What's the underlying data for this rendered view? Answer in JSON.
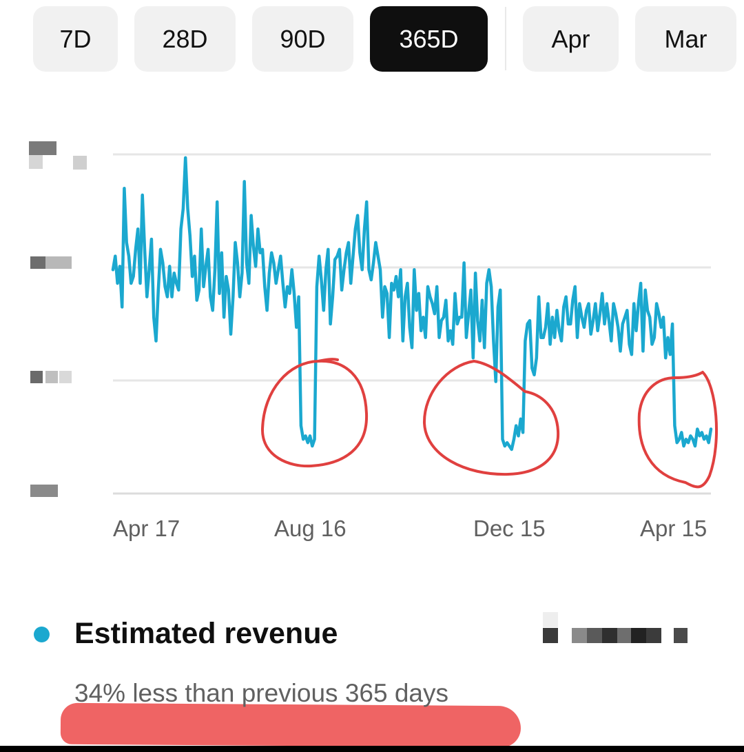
{
  "period_tabs": [
    {
      "label": "7D",
      "selected": false
    },
    {
      "label": "28D",
      "selected": false
    },
    {
      "label": "90D",
      "selected": true,
      "note": ""
    },
    {
      "label": "365D",
      "selected": true
    },
    {
      "label": "Apr",
      "selected": false
    },
    {
      "label": "Mar",
      "selected": false
    }
  ],
  "colors": {
    "series": "#1ba8cf",
    "active_tab": "#0f0f0f",
    "inactive_tab": "#f1f1f1",
    "annotation": "#e0403f",
    "gridline": "#e6e6e6",
    "muted_text": "#606060"
  },
  "chart_data": {
    "type": "line",
    "x_ticks": [
      "Apr 17",
      "Aug 16",
      "Dec 15",
      "Apr 15"
    ],
    "y_ticks_visible": false,
    "y_axis_labels": "redacted",
    "grid": true,
    "series": [
      {
        "values": [
          0.66,
          0.7,
          0.62,
          0.67,
          0.55,
          0.9,
          0.74,
          0.7,
          0.62,
          0.64,
          0.72,
          0.78,
          0.62,
          0.88,
          0.72,
          0.58,
          0.66,
          0.75,
          0.52,
          0.45,
          0.6,
          0.72,
          0.68,
          0.61,
          0.58,
          0.67,
          0.58,
          0.65,
          0.62,
          0.6,
          0.78,
          0.84,
          0.99,
          0.84,
          0.76,
          0.64,
          0.7,
          0.57,
          0.6,
          0.78,
          0.61,
          0.67,
          0.72,
          0.58,
          0.54,
          0.66,
          0.86,
          0.59,
          0.71,
          0.52,
          0.64,
          0.6,
          0.47,
          0.58,
          0.74,
          0.68,
          0.58,
          0.65,
          0.92,
          0.68,
          0.62,
          0.82,
          0.73,
          0.67,
          0.78,
          0.71,
          0.72,
          0.61,
          0.54,
          0.65,
          0.71,
          0.68,
          0.62,
          0.66,
          0.7,
          0.62,
          0.55,
          0.61,
          0.59,
          0.66,
          0.59,
          0.49,
          0.58,
          0.2,
          0.16,
          0.17,
          0.15,
          0.17,
          0.14,
          0.16,
          0.61,
          0.7,
          0.63,
          0.54,
          0.66,
          0.72,
          0.5,
          0.58,
          0.69,
          0.7,
          0.72,
          0.6,
          0.66,
          0.71,
          0.74,
          0.62,
          0.7,
          0.78,
          0.82,
          0.71,
          0.66,
          0.78,
          0.86,
          0.66,
          0.63,
          0.68,
          0.74,
          0.7,
          0.66,
          0.52,
          0.61,
          0.59,
          0.46,
          0.62,
          0.6,
          0.64,
          0.58,
          0.66,
          0.45,
          0.58,
          0.62,
          0.49,
          0.43,
          0.66,
          0.54,
          0.59,
          0.48,
          0.52,
          0.46,
          0.61,
          0.58,
          0.56,
          0.53,
          0.61,
          0.46,
          0.51,
          0.52,
          0.57,
          0.45,
          0.48,
          0.44,
          0.59,
          0.5,
          0.52,
          0.52,
          0.68,
          0.46,
          0.53,
          0.6,
          0.4,
          0.65,
          0.51,
          0.45,
          0.57,
          0.43,
          0.62,
          0.66,
          0.61,
          0.45,
          0.33,
          0.55,
          0.6,
          0.16,
          0.14,
          0.15,
          0.14,
          0.13,
          0.16,
          0.2,
          0.17,
          0.22,
          0.18,
          0.45,
          0.5,
          0.51,
          0.37,
          0.35,
          0.4,
          0.58,
          0.46,
          0.46,
          0.49,
          0.56,
          0.44,
          0.52,
          0.46,
          0.54,
          0.48,
          0.45,
          0.55,
          0.58,
          0.5,
          0.5,
          0.57,
          0.61,
          0.46,
          0.56,
          0.52,
          0.49,
          0.54,
          0.56,
          0.47,
          0.51,
          0.56,
          0.48,
          0.53,
          0.59,
          0.5,
          0.56,
          0.51,
          0.45,
          0.56,
          0.53,
          0.49,
          0.42,
          0.5,
          0.52,
          0.54,
          0.44,
          0.41,
          0.56,
          0.48,
          0.56,
          0.62,
          0.42,
          0.6,
          0.54,
          0.52,
          0.44,
          0.46,
          0.56,
          0.53,
          0.49,
          0.52,
          0.4,
          0.46,
          0.41,
          0.5,
          0.2,
          0.15,
          0.16,
          0.18,
          0.14,
          0.16,
          0.15,
          0.17,
          0.16,
          0.14,
          0.19,
          0.17,
          0.18,
          0.16,
          0.17,
          0.15,
          0.19
        ]
      }
    ],
    "annotations": [
      {
        "type": "hand-drawn circle",
        "around": "drop near Aug 16"
      },
      {
        "type": "hand-drawn circle",
        "around": "drop near Dec 15"
      },
      {
        "type": "hand-drawn circle",
        "around": "drop near Apr 15"
      }
    ]
  },
  "summary": {
    "metric_label": "Estimated revenue",
    "metric_value_redacted": true,
    "comparison_text": "34% less than previous 365 days"
  }
}
